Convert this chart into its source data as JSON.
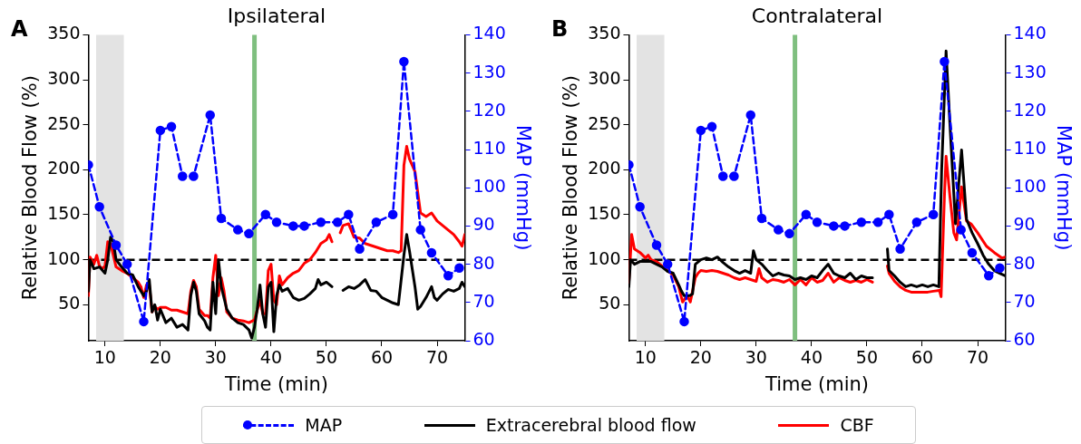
{
  "chart_data": [
    {
      "type": "line",
      "title": "Ipsilateral",
      "xlabel": "Time (min)",
      "ylabel": "Relative Blood Flow (%)",
      "y2label": "MAP (mmHg)",
      "annotations": [
        "A"
      ],
      "xlim": [
        7,
        75
      ],
      "xticks": [
        10,
        20,
        30,
        40,
        50,
        60,
        70
      ],
      "ylim": [
        10,
        350
      ],
      "yticks": [
        50,
        100,
        150,
        200,
        250,
        300,
        350
      ],
      "y2lim": [
        60,
        140
      ],
      "y2ticks": [
        60,
        70,
        80,
        90,
        100,
        110,
        120,
        130,
        140
      ],
      "grid": false,
      "legend": "bottom",
      "ref_lines": [
        {
          "axis": "y",
          "value": 100,
          "color": "#000000",
          "line_style": "dashed"
        },
        {
          "axis": "x",
          "value": 37,
          "color": "#7fbf7f"
        }
      ],
      "bands": [
        {
          "axis": "x",
          "from": 8.4,
          "to": 13.4,
          "color": "#e3e3e3"
        }
      ],
      "series": [
        {
          "name": "MAP",
          "color": "#0000ff",
          "axis": "y2",
          "marker": "circle",
          "line_style": "dashed",
          "x": [
            7,
            9,
            12,
            14,
            17,
            20,
            22,
            24,
            26,
            29,
            31,
            34,
            36,
            39,
            41,
            44,
            46,
            49,
            52,
            54,
            56,
            59,
            62,
            64,
            67,
            69,
            72,
            74
          ],
          "values": [
            106,
            95,
            85,
            80,
            65,
            115,
            116,
            103,
            103,
            119,
            92,
            89,
            88,
            93,
            91,
            90,
            90,
            91,
            91,
            93,
            84,
            91,
            93,
            133,
            89,
            83,
            77,
            79
          ]
        },
        {
          "name": "Extracerebral blood flow",
          "color": "#000000",
          "x": [
            7,
            7.3,
            8,
            9,
            10,
            10.5,
            11,
            11.5,
            12,
            13,
            14,
            15,
            16,
            17,
            17.5,
            18,
            18.5,
            19,
            19.5,
            20,
            21,
            22,
            23,
            24,
            25,
            25.5,
            26,
            26.5,
            27,
            28,
            28.5,
            29,
            29.5,
            30,
            30.5,
            31,
            32,
            33,
            34,
            35,
            36,
            36.5,
            37,
            37.5,
            38,
            38.5,
            39,
            39.5,
            40,
            40.5,
            41,
            41.5,
            42,
            43,
            44,
            45,
            46,
            47,
            48,
            48.5,
            49,
            50,
            51,
            52,
            53,
            54,
            55,
            56,
            57,
            58,
            59,
            60,
            61,
            62,
            63,
            64,
            64.5,
            65,
            66,
            66.5,
            67,
            68,
            69,
            69.5,
            70,
            71,
            72,
            73,
            74,
            74.5,
            75
          ],
          "values": [
            65,
            100,
            90,
            92,
            85,
            100,
            125,
            120,
            100,
            92,
            85,
            83,
            70,
            60,
            65,
            78,
            42,
            50,
            33,
            45,
            30,
            35,
            25,
            28,
            22,
            60,
            75,
            65,
            40,
            32,
            25,
            22,
            75,
            40,
            100,
            70,
            45,
            35,
            30,
            28,
            22,
            13,
            25,
            45,
            72,
            40,
            25,
            70,
            75,
            20,
            60,
            72,
            65,
            68,
            58,
            55,
            57,
            62,
            68,
            78,
            72,
            75,
            70,
            null,
            66,
            70,
            68,
            72,
            78,
            66,
            65,
            58,
            55,
            52,
            50,
            105,
            128,
            110,
            70,
            45,
            48,
            58,
            70,
            58,
            55,
            62,
            67,
            65,
            68,
            75,
            70
          ]
        },
        {
          "name": "CBF",
          "color": "#ff0000",
          "x": [
            7,
            7.3,
            8,
            8.5,
            9,
            9.5,
            10,
            10.5,
            11,
            11.5,
            12,
            13,
            14,
            15,
            16,
            16.5,
            17,
            17.5,
            18,
            18.5,
            19,
            19.5,
            20,
            21,
            22,
            23,
            24,
            25,
            25.5,
            26,
            26.5,
            27,
            28,
            28.5,
            29,
            29.5,
            30,
            30.5,
            31,
            31.5,
            32,
            33,
            34,
            35,
            36,
            37,
            37.5,
            38,
            38.5,
            39,
            39.5,
            40,
            40.5,
            41,
            41.5,
            42,
            43,
            44,
            45,
            46,
            47,
            48,
            49,
            50,
            50.5,
            51,
            52,
            52.5,
            53,
            54,
            55,
            56,
            57,
            58,
            59,
            60,
            61,
            62,
            63,
            63.5,
            64,
            64.5,
            65,
            66,
            67,
            68,
            69,
            70,
            71,
            72,
            73,
            74,
            74.5,
            75
          ],
          "values": [
            60,
            103,
            95,
            105,
            93,
            90,
            93,
            120,
            118,
            105,
            92,
            88,
            85,
            80,
            75,
            70,
            58,
            72,
            72,
            42,
            48,
            45,
            47,
            47,
            44,
            44,
            42,
            40,
            65,
            77,
            70,
            45,
            38,
            38,
            35,
            80,
            105,
            60,
            80,
            65,
            42,
            35,
            33,
            32,
            30,
            33,
            44,
            55,
            40,
            40,
            88,
            95,
            55,
            50,
            82,
            72,
            80,
            85,
            88,
            96,
            100,
            108,
            118,
            122,
            128,
            120,
            null,
            130,
            138,
            140,
            125,
            124,
            118,
            116,
            114,
            112,
            110,
            110,
            108,
            110,
            205,
            226,
            212,
            198,
            152,
            148,
            152,
            143,
            138,
            133,
            128,
            120,
            115,
            128
          ]
        }
      ]
    },
    {
      "type": "line",
      "title": "Contralateral",
      "xlabel": "Time (min)",
      "ylabel": "Relative Blood Flow (%)",
      "y2label": "MAP (mmHg)",
      "annotations": [
        "B"
      ],
      "xlim": [
        7,
        75
      ],
      "xticks": [
        10,
        20,
        30,
        40,
        50,
        60,
        70
      ],
      "ylim": [
        10,
        350
      ],
      "yticks": [
        50,
        100,
        150,
        200,
        250,
        300,
        350
      ],
      "y2lim": [
        60,
        140
      ],
      "y2ticks": [
        60,
        70,
        80,
        90,
        100,
        110,
        120,
        130,
        140
      ],
      "grid": false,
      "ref_lines": [
        {
          "axis": "y",
          "value": 100,
          "color": "#000000",
          "line_style": "dashed"
        },
        {
          "axis": "x",
          "value": 37,
          "color": "#7fbf7f"
        }
      ],
      "bands": [
        {
          "axis": "x",
          "from": 8.4,
          "to": 13.4,
          "color": "#e3e3e3"
        }
      ],
      "series": [
        {
          "color": "#0000ff",
          "axis": "y2",
          "marker": "circle",
          "line_style": "dashed",
          "x": [
            7,
            9,
            12,
            14,
            17,
            20,
            22,
            24,
            26,
            29,
            31,
            34,
            36,
            39,
            41,
            44,
            46,
            49,
            52,
            54,
            56,
            59,
            62,
            64,
            67,
            69,
            72,
            74
          ],
          "values": [
            106,
            95,
            85,
            80,
            65,
            115,
            116,
            103,
            103,
            119,
            92,
            89,
            88,
            93,
            91,
            90,
            90,
            91,
            91,
            93,
            84,
            91,
            93,
            133,
            89,
            83,
            77,
            79
          ]
        },
        {
          "color": "#000000",
          "x": [
            7,
            7.3,
            8,
            9,
            10,
            11,
            12,
            13,
            14,
            15,
            16,
            16.5,
            17,
            18,
            18.5,
            19,
            20,
            21,
            22,
            23,
            24,
            25,
            26,
            27,
            28,
            29,
            29.5,
            30,
            31,
            32,
            33,
            34,
            35,
            36,
            37,
            38,
            39,
            40,
            41,
            42,
            43,
            44,
            45,
            46,
            47,
            48,
            49,
            50,
            51,
            52,
            53.7,
            54,
            55,
            56,
            57,
            58,
            59,
            60,
            61,
            62,
            63,
            63.5,
            64.3,
            65,
            66,
            67.1,
            68,
            69,
            70,
            71,
            72,
            73,
            74,
            75
          ],
          "values": [
            70,
            100,
            95,
            98,
            98,
            98,
            95,
            92,
            87,
            85,
            72,
            65,
            60,
            60,
            62,
            95,
            100,
            102,
            100,
            103,
            97,
            92,
            88,
            85,
            88,
            85,
            110,
            100,
            95,
            88,
            82,
            85,
            83,
            82,
            78,
            80,
            78,
            82,
            80,
            88,
            95,
            85,
            82,
            80,
            85,
            78,
            82,
            80,
            80,
            null,
            112,
            88,
            82,
            75,
            70,
            72,
            70,
            72,
            70,
            72,
            70,
            200,
            332,
            250,
            140,
            222,
            145,
            130,
            118,
            105,
            95,
            88,
            85,
            82
          ]
        },
        {
          "color": "#ff0000",
          "x": [
            7,
            7.5,
            8,
            9,
            10,
            10.5,
            11,
            12,
            13,
            14,
            15,
            16,
            16.7,
            17.5,
            18.1,
            19,
            19.5,
            20,
            21,
            22,
            23,
            24,
            25,
            26,
            27,
            28,
            29,
            30,
            30.5,
            31,
            32,
            33,
            34,
            35,
            36,
            37,
            38,
            39,
            40,
            41,
            42,
            43,
            44,
            45,
            46,
            47,
            48,
            49,
            50,
            51,
            52,
            53.7,
            54,
            55,
            56,
            57,
            58,
            59,
            60,
            61,
            62,
            63.1,
            63.4,
            64,
            64.3,
            65,
            65.7,
            66.2,
            67.1,
            68,
            68.8,
            70,
            71.6,
            73,
            74.4,
            75
          ],
          "values": [
            75,
            128,
            112,
            108,
            102,
            105,
            100,
            98,
            93,
            88,
            83,
            70,
            53,
            60,
            53,
            80,
            85,
            88,
            87,
            88,
            87,
            85,
            83,
            80,
            78,
            80,
            78,
            76,
            90,
            80,
            75,
            78,
            77,
            75,
            78,
            72,
            78,
            72,
            80,
            75,
            77,
            85,
            75,
            80,
            77,
            75,
            77,
            75,
            78,
            75,
            null,
            93,
            85,
            76,
            70,
            66,
            64,
            64,
            64,
            64,
            65,
            66,
            59,
            170,
            215,
            170,
            130,
            122,
            181,
            143,
            140,
            130,
            115,
            108,
            102,
            103
          ]
        }
      ]
    }
  ]
}
